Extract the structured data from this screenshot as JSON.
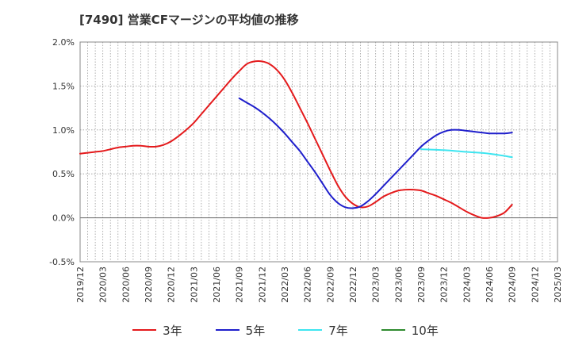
{
  "title": "[7490]  営業CFマージンの平均値の推移",
  "colors": {
    "s3": "#e41a1c",
    "s5": "#1f1fcc",
    "s7": "#3ee5f0",
    "s10": "#2e8b2e",
    "grid": "#999999",
    "zero": "#666666"
  },
  "legend": [
    {
      "label": "3年",
      "color": "#e41a1c"
    },
    {
      "label": "5年",
      "color": "#1f1fcc"
    },
    {
      "label": "7年",
      "color": "#3ee5f0"
    },
    {
      "label": "10年",
      "color": "#2e8b2e"
    }
  ],
  "chart_data": {
    "type": "line",
    "title": "[7490]  営業CFマージンの平均値の推移",
    "ylim": [
      -0.5,
      2.0
    ],
    "y_ticks": [
      -0.5,
      0.0,
      0.5,
      1.0,
      1.5,
      2.0
    ],
    "y_tick_labels": [
      "-0.5%",
      "0.0%",
      "0.5%",
      "1.0%",
      "1.5%",
      "2.0%"
    ],
    "x_start": "2019-12",
    "x_end": "2025-03",
    "x_tick_labels": [
      "2019/12",
      "2020/03",
      "2020/06",
      "2020/09",
      "2020/12",
      "2021/03",
      "2021/06",
      "2021/09",
      "2021/12",
      "2022/03",
      "2022/06",
      "2022/09",
      "2022/12",
      "2023/03",
      "2023/06",
      "2023/09",
      "2023/12",
      "2024/03",
      "2024/06",
      "2024/09",
      "2024/12",
      "2025/03"
    ],
    "grid": true,
    "legend_position": "bottom",
    "series": [
      {
        "name": "3年",
        "color": "#e41a1c",
        "points": [
          [
            "2019-12",
            0.73
          ],
          [
            "2020-01",
            0.74
          ],
          [
            "2020-02",
            0.75
          ],
          [
            "2020-03",
            0.76
          ],
          [
            "2020-04",
            0.78
          ],
          [
            "2020-05",
            0.8
          ],
          [
            "2020-06",
            0.81
          ],
          [
            "2020-07",
            0.82
          ],
          [
            "2020-08",
            0.82
          ],
          [
            "2020-09",
            0.81
          ],
          [
            "2020-10",
            0.81
          ],
          [
            "2020-11",
            0.83
          ],
          [
            "2020-12",
            0.87
          ],
          [
            "2021-01",
            0.93
          ],
          [
            "2021-02",
            1.0
          ],
          [
            "2021-03",
            1.08
          ],
          [
            "2021-04",
            1.18
          ],
          [
            "2021-05",
            1.28
          ],
          [
            "2021-06",
            1.38
          ],
          [
            "2021-07",
            1.48
          ],
          [
            "2021-08",
            1.58
          ],
          [
            "2021-09",
            1.67
          ],
          [
            "2021-10",
            1.75
          ],
          [
            "2021-11",
            1.78
          ],
          [
            "2021-12",
            1.78
          ],
          [
            "2022-01",
            1.75
          ],
          [
            "2022-02",
            1.68
          ],
          [
            "2022-03",
            1.57
          ],
          [
            "2022-04",
            1.42
          ],
          [
            "2022-05",
            1.25
          ],
          [
            "2022-06",
            1.08
          ],
          [
            "2022-07",
            0.9
          ],
          [
            "2022-08",
            0.72
          ],
          [
            "2022-09",
            0.54
          ],
          [
            "2022-10",
            0.37
          ],
          [
            "2022-11",
            0.24
          ],
          [
            "2022-12",
            0.16
          ],
          [
            "2023-01",
            0.12
          ],
          [
            "2023-02",
            0.13
          ],
          [
            "2023-03",
            0.18
          ],
          [
            "2023-04",
            0.24
          ],
          [
            "2023-05",
            0.28
          ],
          [
            "2023-06",
            0.31
          ],
          [
            "2023-07",
            0.32
          ],
          [
            "2023-08",
            0.32
          ],
          [
            "2023-09",
            0.31
          ],
          [
            "2023-10",
            0.28
          ],
          [
            "2023-11",
            0.25
          ],
          [
            "2023-12",
            0.21
          ],
          [
            "2024-01",
            0.17
          ],
          [
            "2024-02",
            0.12
          ],
          [
            "2024-03",
            0.07
          ],
          [
            "2024-04",
            0.03
          ],
          [
            "2024-05",
            0.0
          ],
          [
            "2024-06",
            0.0
          ],
          [
            "2024-07",
            0.02
          ],
          [
            "2024-08",
            0.06
          ],
          [
            "2024-09",
            0.15
          ]
        ]
      },
      {
        "name": "5年",
        "color": "#1f1fcc",
        "points": [
          [
            "2021-09",
            1.36
          ],
          [
            "2021-10",
            1.31
          ],
          [
            "2021-11",
            1.26
          ],
          [
            "2021-12",
            1.2
          ],
          [
            "2022-01",
            1.13
          ],
          [
            "2022-02",
            1.05
          ],
          [
            "2022-03",
            0.96
          ],
          [
            "2022-04",
            0.86
          ],
          [
            "2022-05",
            0.76
          ],
          [
            "2022-06",
            0.64
          ],
          [
            "2022-07",
            0.52
          ],
          [
            "2022-08",
            0.39
          ],
          [
            "2022-09",
            0.26
          ],
          [
            "2022-10",
            0.17
          ],
          [
            "2022-11",
            0.12
          ],
          [
            "2022-12",
            0.11
          ],
          [
            "2023-01",
            0.13
          ],
          [
            "2023-02",
            0.19
          ],
          [
            "2023-03",
            0.27
          ],
          [
            "2023-04",
            0.36
          ],
          [
            "2023-05",
            0.45
          ],
          [
            "2023-06",
            0.54
          ],
          [
            "2023-07",
            0.63
          ],
          [
            "2023-08",
            0.72
          ],
          [
            "2023-09",
            0.81
          ],
          [
            "2023-10",
            0.88
          ],
          [
            "2023-11",
            0.94
          ],
          [
            "2023-12",
            0.98
          ],
          [
            "2024-01",
            1.0
          ],
          [
            "2024-02",
            1.0
          ],
          [
            "2024-03",
            0.99
          ],
          [
            "2024-04",
            0.98
          ],
          [
            "2024-05",
            0.97
          ],
          [
            "2024-06",
            0.96
          ],
          [
            "2024-07",
            0.96
          ],
          [
            "2024-08",
            0.96
          ],
          [
            "2024-09",
            0.97
          ]
        ]
      },
      {
        "name": "7年",
        "color": "#3ee5f0",
        "points": [
          [
            "2023-09",
            0.78
          ],
          [
            "2023-12",
            0.77
          ],
          [
            "2024-03",
            0.75
          ],
          [
            "2024-06",
            0.73
          ],
          [
            "2024-09",
            0.69
          ]
        ]
      },
      {
        "name": "10年",
        "color": "#2e8b2e",
        "points": []
      }
    ]
  }
}
